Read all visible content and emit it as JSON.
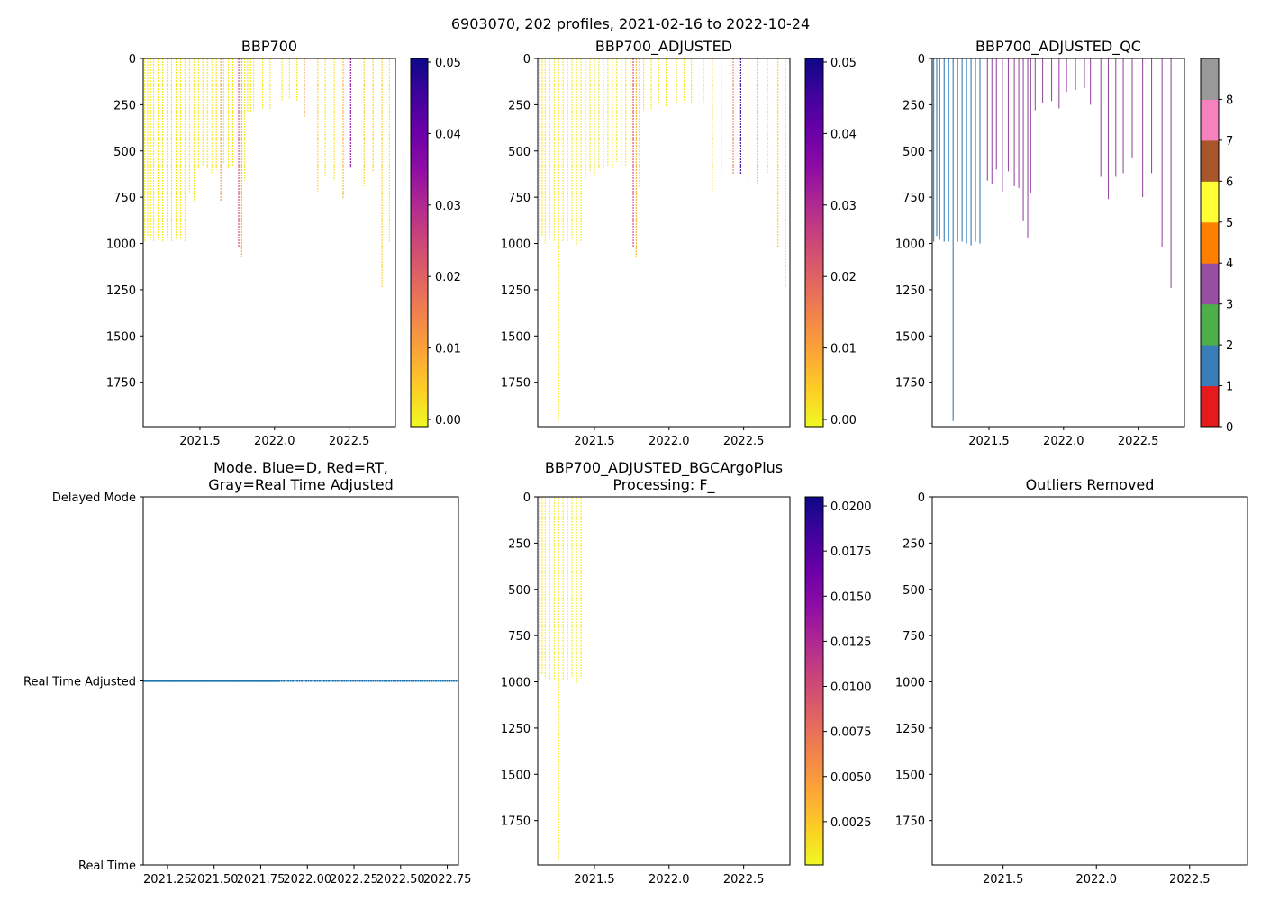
{
  "figure": {
    "suptitle": "6903070, 202 profiles, 2021-02-16 to 2022-10-24"
  },
  "chart_data": [
    {
      "id": "bbp700",
      "type": "heatmap",
      "title": "BBP700",
      "x_ticks": [
        "2021.5",
        "2022.0",
        "2022.5"
      ],
      "x_tick_values": [
        2021.5,
        2022.0,
        2022.5
      ],
      "xlim": [
        2021.12,
        2022.81
      ],
      "y_ticks": [
        "0",
        "250",
        "500",
        "750",
        "1000",
        "1250",
        "1500",
        "1750"
      ],
      "y_tick_values": [
        0,
        250,
        500,
        750,
        1000,
        1250,
        1500,
        1750
      ],
      "ylim": [
        1990,
        0
      ],
      "colorbar": {
        "ticks": [
          "0.00",
          "0.01",
          "0.02",
          "0.03",
          "0.04",
          "0.05"
        ],
        "tick_values": [
          0.0,
          0.01,
          0.02,
          0.03,
          0.04,
          0.05
        ],
        "range": [
          -0.001,
          0.0505
        ],
        "colormap": "plasma_r"
      },
      "profiles": [
        {
          "t": 2021.13,
          "depth": 990,
          "value": 0.001
        },
        {
          "t": 2021.15,
          "depth": 960,
          "value": 0.001
        },
        {
          "t": 2021.17,
          "depth": 980,
          "value": 0.001
        },
        {
          "t": 2021.19,
          "depth": 990,
          "value": 0.001
        },
        {
          "t": 2021.22,
          "depth": 980,
          "value": 0.001
        },
        {
          "t": 2021.25,
          "depth": 990,
          "value": 0.001
        },
        {
          "t": 2021.28,
          "depth": 980,
          "value": 0.001
        },
        {
          "t": 2021.31,
          "depth": 990,
          "value": 0.001
        },
        {
          "t": 2021.34,
          "depth": 980,
          "value": 0.001
        },
        {
          "t": 2021.37,
          "depth": 980,
          "value": 0.001
        },
        {
          "t": 2021.4,
          "depth": 990,
          "value": 0.001
        },
        {
          "t": 2021.43,
          "depth": 730,
          "value": 0.001
        },
        {
          "t": 2021.46,
          "depth": 780,
          "value": 0.001
        },
        {
          "t": 2021.49,
          "depth": 600,
          "value": 0.001
        },
        {
          "t": 2021.52,
          "depth": 580,
          "value": 0.001
        },
        {
          "t": 2021.55,
          "depth": 600,
          "value": 0.001
        },
        {
          "t": 2021.58,
          "depth": 620,
          "value": 0.001
        },
        {
          "t": 2021.61,
          "depth": 600,
          "value": 0.001
        },
        {
          "t": 2021.64,
          "depth": 780,
          "value": 0.012
        },
        {
          "t": 2021.66,
          "depth": 570,
          "value": 0.001
        },
        {
          "t": 2021.69,
          "depth": 600,
          "value": 0.001
        },
        {
          "t": 2021.72,
          "depth": 580,
          "value": 0.001
        },
        {
          "t": 2021.76,
          "depth": 1020,
          "value": 0.025
        },
        {
          "t": 2021.78,
          "depth": 1070,
          "value": 0.008
        },
        {
          "t": 2021.8,
          "depth": 660,
          "value": 0.001
        },
        {
          "t": 2021.82,
          "depth": 290,
          "value": 0.001
        },
        {
          "t": 2021.84,
          "depth": 290,
          "value": 0.001
        },
        {
          "t": 2021.86,
          "depth": 280,
          "value": 0.001
        },
        {
          "t": 2021.92,
          "depth": 270,
          "value": 0.001
        },
        {
          "t": 2021.97,
          "depth": 280,
          "value": 0.001
        },
        {
          "t": 2022.05,
          "depth": 230,
          "value": 0.001
        },
        {
          "t": 2022.1,
          "depth": 220,
          "value": 0.001
        },
        {
          "t": 2022.15,
          "depth": 230,
          "value": 0.001
        },
        {
          "t": 2022.2,
          "depth": 320,
          "value": 0.012
        },
        {
          "t": 2022.29,
          "depth": 720,
          "value": 0.004
        },
        {
          "t": 2022.34,
          "depth": 640,
          "value": 0.001
        },
        {
          "t": 2022.4,
          "depth": 660,
          "value": 0.001
        },
        {
          "t": 2022.46,
          "depth": 760,
          "value": 0.008
        },
        {
          "t": 2022.51,
          "depth": 590,
          "value": 0.035
        },
        {
          "t": 2022.6,
          "depth": 690,
          "value": 0.004
        },
        {
          "t": 2022.66,
          "depth": 610,
          "value": 0.004
        },
        {
          "t": 2022.72,
          "depth": 1240,
          "value": 0.004
        },
        {
          "t": 2022.77,
          "depth": 990,
          "value": 0.001
        }
      ]
    },
    {
      "id": "bbp700_adjusted",
      "type": "heatmap",
      "title": "BBP700_ADJUSTED",
      "x_ticks": [
        "2021.5",
        "2022.0",
        "2022.5"
      ],
      "x_tick_values": [
        2021.5,
        2022.0,
        2022.5
      ],
      "xlim": [
        2021.12,
        2022.81
      ],
      "y_ticks": [
        "0",
        "250",
        "500",
        "750",
        "1000",
        "1250",
        "1500",
        "1750"
      ],
      "y_tick_values": [
        0,
        250,
        500,
        750,
        1000,
        1250,
        1500,
        1750
      ],
      "ylim": [
        1990,
        0
      ],
      "colorbar": {
        "ticks": [
          "0.00",
          "0.01",
          "0.02",
          "0.03",
          "0.04",
          "0.05"
        ],
        "tick_values": [
          0.0,
          0.01,
          0.02,
          0.03,
          0.04,
          0.05
        ],
        "range": [
          -0.001,
          0.0505
        ],
        "colormap": "plasma_r"
      },
      "profiles": [
        {
          "t": 2021.13,
          "depth": 990,
          "value": 0.001
        },
        {
          "t": 2021.15,
          "depth": 960,
          "value": 0.001
        },
        {
          "t": 2021.17,
          "depth": 1000,
          "value": 0.001
        },
        {
          "t": 2021.2,
          "depth": 980,
          "value": 0.001
        },
        {
          "t": 2021.23,
          "depth": 990,
          "value": 0.001
        },
        {
          "t": 2021.26,
          "depth": 1960,
          "value": 0.001
        },
        {
          "t": 2021.29,
          "depth": 990,
          "value": 0.001
        },
        {
          "t": 2021.32,
          "depth": 990,
          "value": 0.001
        },
        {
          "t": 2021.35,
          "depth": 980,
          "value": 0.001
        },
        {
          "t": 2021.38,
          "depth": 1010,
          "value": 0.001
        },
        {
          "t": 2021.41,
          "depth": 990,
          "value": 0.001
        },
        {
          "t": 2021.44,
          "depth": 660,
          "value": 0.001
        },
        {
          "t": 2021.47,
          "depth": 610,
          "value": 0.001
        },
        {
          "t": 2021.5,
          "depth": 640,
          "value": 0.001
        },
        {
          "t": 2021.53,
          "depth": 600,
          "value": 0.001
        },
        {
          "t": 2021.56,
          "depth": 600,
          "value": 0.001
        },
        {
          "t": 2021.59,
          "depth": 580,
          "value": 0.001
        },
        {
          "t": 2021.62,
          "depth": 600,
          "value": 0.001
        },
        {
          "t": 2021.65,
          "depth": 560,
          "value": 0.001
        },
        {
          "t": 2021.68,
          "depth": 580,
          "value": 0.001
        },
        {
          "t": 2021.71,
          "depth": 580,
          "value": 0.001
        },
        {
          "t": 2021.74,
          "depth": 560,
          "value": 0.001
        },
        {
          "t": 2021.76,
          "depth": 1020,
          "value": 0.025
        },
        {
          "t": 2021.78,
          "depth": 1070,
          "value": 0.008
        },
        {
          "t": 2021.8,
          "depth": 700,
          "value": 0.001
        },
        {
          "t": 2021.83,
          "depth": 280,
          "value": 0.001
        },
        {
          "t": 2021.88,
          "depth": 280,
          "value": 0.001
        },
        {
          "t": 2021.93,
          "depth": 250,
          "value": 0.001
        },
        {
          "t": 2021.98,
          "depth": 260,
          "value": 0.001
        },
        {
          "t": 2022.05,
          "depth": 240,
          "value": 0.001
        },
        {
          "t": 2022.1,
          "depth": 230,
          "value": 0.001
        },
        {
          "t": 2022.15,
          "depth": 240,
          "value": 0.001
        },
        {
          "t": 2022.23,
          "depth": 250,
          "value": 0.004
        },
        {
          "t": 2022.29,
          "depth": 720,
          "value": 0.004
        },
        {
          "t": 2022.35,
          "depth": 620,
          "value": 0.001
        },
        {
          "t": 2022.43,
          "depth": 630,
          "value": 0.015
        },
        {
          "t": 2022.48,
          "depth": 630,
          "value": 0.045
        },
        {
          "t": 2022.53,
          "depth": 660,
          "value": 0.006
        },
        {
          "t": 2022.59,
          "depth": 680,
          "value": 0.004
        },
        {
          "t": 2022.66,
          "depth": 620,
          "value": 0.001
        },
        {
          "t": 2022.73,
          "depth": 1020,
          "value": 0.004
        },
        {
          "t": 2022.78,
          "depth": 1240,
          "value": 0.004
        }
      ]
    },
    {
      "id": "bbp700_adjusted_qc",
      "type": "heatmap",
      "title": "BBP700_ADJUSTED_QC",
      "x_ticks": [
        "2021.5",
        "2022.0",
        "2022.5"
      ],
      "x_tick_values": [
        2021.5,
        2022.0,
        2022.5
      ],
      "xlim": [
        2021.12,
        2022.81
      ],
      "y_ticks": [
        "0",
        "250",
        "500",
        "750",
        "1000",
        "1250",
        "1500",
        "1750"
      ],
      "y_tick_values": [
        0,
        250,
        500,
        750,
        1000,
        1250,
        1500,
        1750
      ],
      "ylim": [
        1990,
        0
      ],
      "colorbar": {
        "ticks": [
          "0",
          "1",
          "2",
          "3",
          "4",
          "5",
          "6",
          "7",
          "8"
        ],
        "tick_values": [
          0,
          1,
          2,
          3,
          4,
          5,
          6,
          7,
          8
        ],
        "range": [
          0,
          9
        ],
        "categories": [
          "0",
          "1",
          "2",
          "3",
          "4",
          "5",
          "6",
          "7",
          "8"
        ],
        "colors": [
          "#e41a1c",
          "#377eb8",
          "#4daf4a",
          "#984ea3",
          "#ff7f00",
          "#ffff33",
          "#a65628",
          "#f781bf",
          "#999999"
        ]
      },
      "profiles": [
        {
          "t": 2021.13,
          "depth": 990,
          "value": 1
        },
        {
          "t": 2021.15,
          "depth": 960,
          "value": 1
        },
        {
          "t": 2021.17,
          "depth": 980,
          "value": 1
        },
        {
          "t": 2021.2,
          "depth": 990,
          "value": 1
        },
        {
          "t": 2021.23,
          "depth": 990,
          "value": 1
        },
        {
          "t": 2021.26,
          "depth": 1960,
          "value": 1
        },
        {
          "t": 2021.29,
          "depth": 990,
          "value": 1
        },
        {
          "t": 2021.32,
          "depth": 990,
          "value": 1
        },
        {
          "t": 2021.35,
          "depth": 1000,
          "value": 1
        },
        {
          "t": 2021.38,
          "depth": 1010,
          "value": 1
        },
        {
          "t": 2021.41,
          "depth": 990,
          "value": 1
        },
        {
          "t": 2021.44,
          "depth": 1000,
          "value": 1
        },
        {
          "t": 2021.49,
          "depth": 660,
          "value": 3
        },
        {
          "t": 2021.52,
          "depth": 680,
          "value": 3
        },
        {
          "t": 2021.55,
          "depth": 600,
          "value": 3
        },
        {
          "t": 2021.59,
          "depth": 720,
          "value": 3
        },
        {
          "t": 2021.63,
          "depth": 610,
          "value": 3
        },
        {
          "t": 2021.67,
          "depth": 690,
          "value": 3
        },
        {
          "t": 2021.7,
          "depth": 700,
          "value": 3
        },
        {
          "t": 2021.73,
          "depth": 880,
          "value": 3
        },
        {
          "t": 2021.76,
          "depth": 970,
          "value": 3
        },
        {
          "t": 2021.78,
          "depth": 730,
          "value": 3
        },
        {
          "t": 2021.81,
          "depth": 280,
          "value": 3
        },
        {
          "t": 2021.86,
          "depth": 240,
          "value": 3
        },
        {
          "t": 2021.92,
          "depth": 230,
          "value": 3
        },
        {
          "t": 2021.97,
          "depth": 270,
          "value": 3
        },
        {
          "t": 2022.02,
          "depth": 180,
          "value": 3
        },
        {
          "t": 2022.08,
          "depth": 170,
          "value": 3
        },
        {
          "t": 2022.14,
          "depth": 160,
          "value": 3
        },
        {
          "t": 2022.18,
          "depth": 250,
          "value": 3
        },
        {
          "t": 2022.25,
          "depth": 640,
          "value": 3
        },
        {
          "t": 2022.3,
          "depth": 760,
          "value": 3
        },
        {
          "t": 2022.35,
          "depth": 640,
          "value": 3
        },
        {
          "t": 2022.4,
          "depth": 620,
          "value": 3
        },
        {
          "t": 2022.46,
          "depth": 540,
          "value": 3
        },
        {
          "t": 2022.53,
          "depth": 750,
          "value": 3
        },
        {
          "t": 2022.59,
          "depth": 620,
          "value": 3
        },
        {
          "t": 2022.66,
          "depth": 1020,
          "value": 3
        },
        {
          "t": 2022.72,
          "depth": 1240,
          "value": 3
        }
      ]
    },
    {
      "id": "mode",
      "type": "scatter",
      "title_lines": [
        "Mode. Blue=D, Red=RT,",
        "Gray=Real Time Adjusted"
      ],
      "x_ticks": [
        "2021.25",
        "2021.50",
        "2021.75",
        "2022.00",
        "2022.25",
        "2022.50",
        "2022.75"
      ],
      "x_tick_values": [
        2021.25,
        2021.5,
        2021.75,
        2022.0,
        2022.25,
        2022.5,
        2022.75
      ],
      "xlim": [
        2021.12,
        2022.81
      ],
      "y_ticks": [
        "Delayed Mode",
        "Real Time Adjusted",
        "Real Time"
      ],
      "y_tick_values": [
        2,
        1,
        0
      ],
      "ylim": [
        0,
        2
      ],
      "series": [
        {
          "name": "Real Time Adjusted",
          "y": 1,
          "x_dense_range": [
            2021.125,
            2021.85
          ],
          "x_sparse_range": [
            2021.85,
            2022.81
          ],
          "color": "#1f77b4"
        }
      ]
    },
    {
      "id": "bbp700_adjusted_bgcargoplus",
      "type": "heatmap",
      "title_lines": [
        "BBP700_ADJUSTED_BGCArgoPlus",
        "Processing: F_"
      ],
      "x_ticks": [
        "2021.5",
        "2022.0",
        "2022.5"
      ],
      "x_tick_values": [
        2021.5,
        2022.0,
        2022.5
      ],
      "xlim": [
        2021.12,
        2022.81
      ],
      "y_ticks": [
        "0",
        "250",
        "500",
        "750",
        "1000",
        "1250",
        "1500",
        "1750"
      ],
      "y_tick_values": [
        0,
        250,
        500,
        750,
        1000,
        1250,
        1500,
        1750
      ],
      "ylim": [
        1990,
        0
      ],
      "colorbar": {
        "ticks": [
          "0.0025",
          "0.0050",
          "0.0075",
          "0.0100",
          "0.0125",
          "0.0150",
          "0.0175",
          "0.0200"
        ],
        "tick_values": [
          0.0025,
          0.005,
          0.0075,
          0.01,
          0.0125,
          0.015,
          0.0175,
          0.02
        ],
        "range": [
          0.0001,
          0.0205
        ],
        "colormap": "plasma_r"
      },
      "profiles": [
        {
          "t": 2021.13,
          "depth": 990,
          "value": 0.0008
        },
        {
          "t": 2021.15,
          "depth": 960,
          "value": 0.0008
        },
        {
          "t": 2021.17,
          "depth": 980,
          "value": 0.0008
        },
        {
          "t": 2021.2,
          "depth": 990,
          "value": 0.0008
        },
        {
          "t": 2021.23,
          "depth": 990,
          "value": 0.0008
        },
        {
          "t": 2021.26,
          "depth": 1960,
          "value": 0.0008
        },
        {
          "t": 2021.29,
          "depth": 990,
          "value": 0.0008
        },
        {
          "t": 2021.32,
          "depth": 990,
          "value": 0.0008
        },
        {
          "t": 2021.35,
          "depth": 980,
          "value": 0.0008
        },
        {
          "t": 2021.38,
          "depth": 1010,
          "value": 0.0008
        },
        {
          "t": 2021.41,
          "depth": 980,
          "value": 0.0008
        }
      ]
    },
    {
      "id": "outliers_removed",
      "type": "heatmap",
      "title": "Outliers Removed",
      "x_ticks": [
        "2021.5",
        "2022.0",
        "2022.5"
      ],
      "x_tick_values": [
        2021.5,
        2022.0,
        2022.5
      ],
      "xlim": [
        2021.12,
        2022.81
      ],
      "y_ticks": [
        "0",
        "250",
        "500",
        "750",
        "1000",
        "1250",
        "1500",
        "1750"
      ],
      "y_tick_values": [
        0,
        250,
        500,
        750,
        1000,
        1250,
        1500,
        1750
      ],
      "ylim": [
        1990,
        0
      ],
      "profiles": []
    }
  ]
}
